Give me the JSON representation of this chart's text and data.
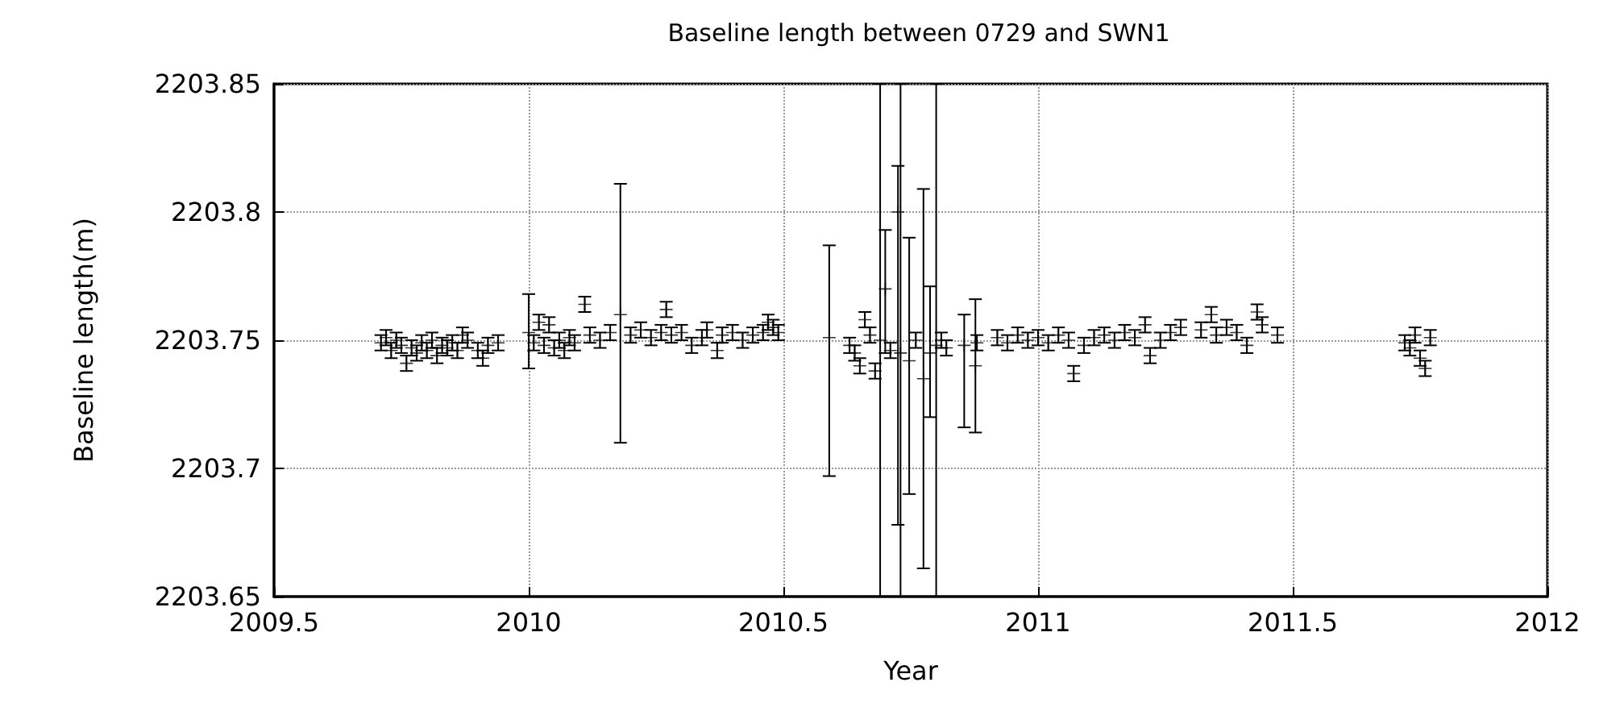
{
  "chart_data": {
    "type": "scatter",
    "title": "Baseline length between 0729 and SWN1",
    "xlabel": "Year",
    "ylabel": "Baseline length(m)",
    "xlim": [
      2009.5,
      2012
    ],
    "xticks": [
      2009.5,
      2010,
      2010.5,
      2011,
      2011.5,
      2012
    ],
    "ylim": [
      2203.65,
      2203.85
    ],
    "yticks": [
      2203.65,
      2203.7,
      2203.75,
      2203.8,
      2203.85
    ],
    "grid": true,
    "marker": "cross",
    "series": [
      {
        "color": "#000000",
        "x": [
          2009.71,
          2009.72,
          2009.73,
          2009.74,
          2009.75,
          2009.76,
          2009.77,
          2009.78,
          2009.79,
          2009.8,
          2009.81,
          2009.82,
          2009.83,
          2009.84,
          2009.85,
          2009.86,
          2009.87,
          2009.88,
          2009.9,
          2009.91,
          2009.92,
          2009.94,
          2010.0,
          2010.01,
          2010.02,
          2010.03,
          2010.04,
          2010.05,
          2010.06,
          2010.07,
          2010.08,
          2010.09,
          2010.11,
          2010.12,
          2010.14,
          2010.16,
          2010.18,
          2010.2,
          2010.22,
          2010.24,
          2010.26,
          2010.27,
          2010.28,
          2010.3,
          2010.32,
          2010.34,
          2010.35,
          2010.37,
          2010.38,
          2010.4,
          2010.42,
          2010.44,
          2010.46,
          2010.47,
          2010.48,
          2010.49,
          2010.59,
          2010.63,
          2010.64,
          2010.65,
          2010.66,
          2010.67,
          2010.68,
          2010.69,
          2010.7,
          2010.71,
          2010.725,
          2010.73,
          2010.747,
          2010.76,
          2010.775,
          2010.788,
          2010.8,
          2010.81,
          2010.82,
          2010.855,
          2010.877,
          2010.88,
          2010.92,
          2010.94,
          2010.96,
          2010.98,
          2011.0,
          2011.02,
          2011.04,
          2011.06,
          2011.07,
          2011.09,
          2011.11,
          2011.13,
          2011.15,
          2011.17,
          2011.19,
          2011.21,
          2011.22,
          2011.24,
          2011.26,
          2011.28,
          2011.32,
          2011.34,
          2011.35,
          2011.37,
          2011.39,
          2011.41,
          2011.43,
          2011.44,
          2011.47,
          2011.72,
          2011.73,
          2011.74,
          2011.75,
          2011.76,
          2011.77
        ],
        "values": [
          2203.749,
          2203.751,
          2203.746,
          2203.75,
          2203.748,
          2203.741,
          2203.747,
          2203.745,
          2203.749,
          2203.746,
          2203.75,
          2203.744,
          2203.748,
          2203.747,
          2203.749,
          2203.746,
          2203.752,
          2203.75,
          2203.746,
          2203.743,
          2203.748,
          2203.749,
          2203.753,
          2203.749,
          2203.757,
          2203.748,
          2203.756,
          2203.747,
          2203.75,
          2203.746,
          2203.751,
          2203.749,
          2203.764,
          2203.752,
          2203.75,
          2203.753,
          2203.76,
          2203.752,
          2203.754,
          2203.751,
          2203.753,
          2203.762,
          2203.752,
          2203.753,
          2203.748,
          2203.751,
          2203.754,
          2203.746,
          2203.752,
          2203.753,
          2203.75,
          2203.752,
          2203.753,
          2203.757,
          2203.755,
          2203.753,
          2203.751,
          2203.748,
          2203.745,
          2203.74,
          2203.758,
          2203.752,
          2203.738,
          2203.75,
          2203.77,
          2203.746,
          2203.8,
          2203.745,
          2203.742,
          2203.75,
          2203.735,
          2203.745,
          2203.748,
          2203.75,
          2203.747,
          2203.748,
          2203.74,
          2203.749,
          2203.751,
          2203.749,
          2203.752,
          2203.75,
          2203.751,
          2203.749,
          2203.752,
          2203.75,
          2203.737,
          2203.748,
          2203.751,
          2203.752,
          2203.75,
          2203.753,
          2203.751,
          2203.756,
          2203.744,
          2203.75,
          2203.753,
          2203.755,
          2203.754,
          2203.76,
          2203.752,
          2203.755,
          2203.753,
          2203.748,
          2203.761,
          2203.756,
          2203.752,
          2203.749,
          2203.747,
          2203.752,
          2203.743,
          2203.739,
          2203.751
        ],
        "errors": [
          0.003,
          0.003,
          0.003,
          0.003,
          0.003,
          0.003,
          0.003,
          0.003,
          0.003,
          0.003,
          0.003,
          0.003,
          0.003,
          0.003,
          0.003,
          0.003,
          0.003,
          0.003,
          0.003,
          0.003,
          0.003,
          0.003,
          [
            2203.739,
            2203.768
          ],
          0.003,
          0.003,
          0.003,
          0.003,
          0.003,
          0.003,
          0.003,
          0.003,
          0.003,
          0.003,
          0.003,
          0.003,
          0.003,
          [
            2203.71,
            2203.811
          ],
          0.003,
          0.003,
          0.003,
          0.003,
          0.003,
          0.003,
          0.003,
          0.003,
          0.003,
          0.003,
          0.003,
          0.003,
          0.003,
          0.003,
          0.003,
          0.003,
          0.003,
          0.003,
          0.003,
          [
            2203.697,
            2203.787
          ],
          0.003,
          0.003,
          0.003,
          0.003,
          0.003,
          0.003,
          [
            2203.65,
            2203.85
          ],
          [
            2203.745,
            2203.793
          ],
          0.003,
          [
            2203.678,
            2203.818
          ],
          [
            2203.65,
            2203.85
          ],
          [
            2203.69,
            2203.79
          ],
          0.003,
          [
            2203.661,
            2203.809
          ],
          [
            2203.72,
            2203.771
          ],
          [
            2203.65,
            2203.85
          ],
          0.003,
          0.003,
          [
            2203.716,
            2203.76
          ],
          [
            2203.714,
            2203.766
          ],
          0.003,
          0.003,
          0.003,
          0.003,
          0.003,
          0.003,
          0.003,
          0.003,
          0.003,
          0.003,
          0.003,
          0.003,
          0.003,
          0.003,
          0.003,
          0.003,
          0.003,
          0.003,
          0.003,
          0.003,
          0.003,
          0.003,
          0.003,
          0.003,
          0.003,
          0.003,
          0.003,
          0.003,
          0.003,
          0.003,
          0.003,
          0.003,
          0.003,
          0.003,
          0.003,
          0.003
        ]
      }
    ]
  }
}
